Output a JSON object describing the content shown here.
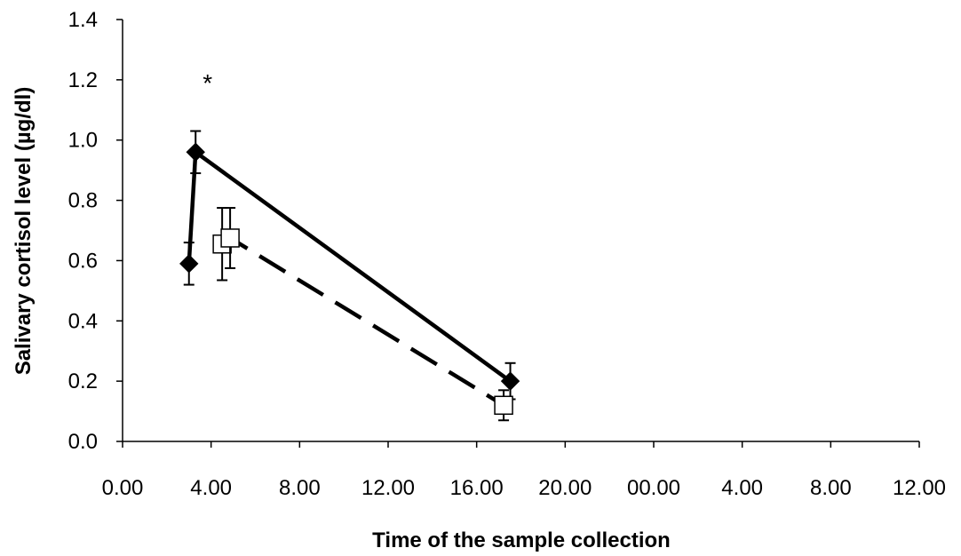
{
  "chart_data": {
    "type": "scatter",
    "title": "",
    "xlabel": "Time of the sample collection",
    "ylabel": "Salivary cortisol level (µg/dl)",
    "x_range_hours": [
      0,
      60
    ],
    "ylim": [
      0,
      1.4
    ],
    "x_tick_labels": [
      "0.00",
      "4.00",
      "8.00",
      "12.00",
      "16.00",
      "20.00",
      "00.00",
      "4.00",
      "8.00",
      "12.00"
    ],
    "y_tick_labels": [
      "0.0",
      "0.2",
      "0.4",
      "0.6",
      "0.8",
      "1.0",
      "1.2",
      "1.4"
    ],
    "grid": false,
    "legend": "none",
    "annotation": {
      "text": "*",
      "x_hours": 6.4,
      "y": 1.22
    },
    "series": [
      {
        "marker": "filled-diamond",
        "line": "solid",
        "color": "#000000",
        "points": [
          {
            "x_hours": 5.0,
            "y": 0.59,
            "err": 0.07
          },
          {
            "x_hours": 5.5,
            "y": 0.96,
            "err": 0.07
          },
          {
            "x_hours": 29.2,
            "y": 0.2,
            "err": 0.06
          }
        ]
      },
      {
        "marker": "open-square",
        "line": "dashed",
        "color": "#000000",
        "points": [
          {
            "x_hours": 7.5,
            "y": 0.655,
            "err": 0.12
          },
          {
            "x_hours": 8.1,
            "y": 0.675,
            "err": 0.1
          },
          {
            "x_hours": 28.7,
            "y": 0.12,
            "err": 0.05
          }
        ]
      }
    ]
  }
}
